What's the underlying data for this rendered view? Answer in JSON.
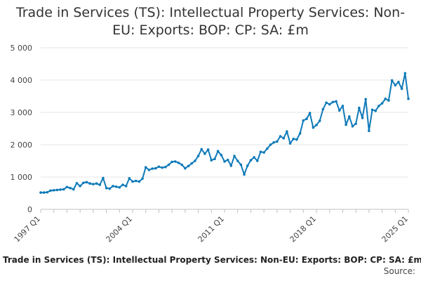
{
  "chart_data": {
    "type": "line",
    "title_line1": "Trade in Services (TS): Intellectual Property Services: Non-",
    "title_line2": "EU: Exports: BOP: CP: SA: £m",
    "xlabel": "",
    "ylabel": "",
    "ylim": [
      0,
      5000
    ],
    "y_ticks": [
      "0",
      "1 000",
      "2 000",
      "3 000",
      "4 000",
      "5 000"
    ],
    "y_tick_values": [
      0,
      1000,
      2000,
      3000,
      4000,
      5000
    ],
    "x_tick_labels": [
      "1997 Q1",
      "2004 Q1",
      "2011 Q1",
      "2018 Q1",
      "2025 Q1"
    ],
    "x_tick_positions": [
      0,
      28,
      56,
      84,
      112
    ],
    "grid": true,
    "legend": "none",
    "color": "#0f7ab8",
    "series": [
      {
        "name": "Intellectual Property Services: Non-EU Exports",
        "x_start": "1997 Q1",
        "values": [
          520,
          520,
          530,
          580,
          590,
          600,
          610,
          620,
          690,
          660,
          620,
          810,
          720,
          820,
          840,
          800,
          780,
          800,
          760,
          970,
          660,
          640,
          720,
          700,
          680,
          760,
          720,
          960,
          860,
          880,
          860,
          950,
          1300,
          1220,
          1260,
          1270,
          1320,
          1290,
          1310,
          1380,
          1470,
          1480,
          1440,
          1380,
          1270,
          1340,
          1420,
          1500,
          1650,
          1860,
          1720,
          1850,
          1520,
          1560,
          1800,
          1680,
          1480,
          1530,
          1350,
          1650,
          1500,
          1380,
          1080,
          1350,
          1520,
          1610,
          1500,
          1780,
          1760,
          1880,
          2000,
          2070,
          2100,
          2260,
          2200,
          2410,
          2040,
          2180,
          2160,
          2350,
          2750,
          2800,
          2980,
          2530,
          2610,
          2740,
          3100,
          3300,
          3250,
          3320,
          3340,
          3060,
          3200,
          2620,
          2870,
          2570,
          2650,
          3140,
          2830,
          3410,
          2430,
          3080,
          3050,
          3200,
          3280,
          3420,
          3370,
          3990,
          3840,
          3940,
          3730,
          4210,
          3420
        ]
      }
    ],
    "footer_title": "Trade in Services (TS): Intellectual Property Services: Non-EU: Exports: BOP: CP: SA: £m",
    "source_label": "Source:"
  }
}
